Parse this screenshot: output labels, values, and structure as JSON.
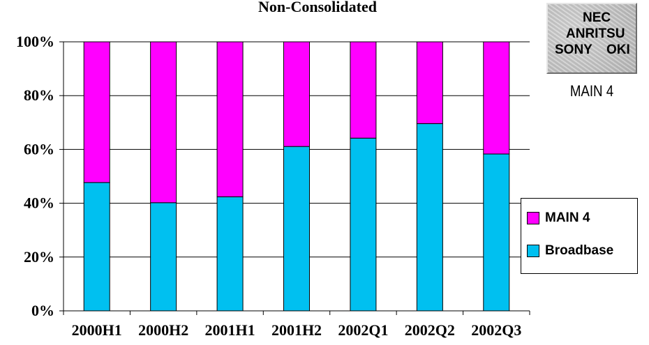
{
  "chart_data": {
    "type": "bar",
    "stacked": true,
    "title": "Non-Consolidated",
    "categories": [
      "2000H1",
      "2000H2",
      "2001H1",
      "2001H2",
      "2002Q1",
      "2002Q2",
      "2002Q3"
    ],
    "series": [
      {
        "name": "Broadbase",
        "color": "#00c0f0",
        "values": [
          47.7,
          40.2,
          42.4,
          61.1,
          64.2,
          69.6,
          58.3
        ]
      },
      {
        "name": "MAIN 4",
        "color": "#ff00ff",
        "values": [
          52.3,
          59.8,
          57.6,
          38.9,
          35.8,
          30.4,
          41.7
        ]
      }
    ],
    "ylim": [
      0,
      100
    ],
    "yticks": [
      "0%",
      "20%",
      "40%",
      "60%",
      "80%",
      "100%"
    ],
    "grid": true,
    "legend_position": "right"
  },
  "legend": [
    {
      "label": "MAIN 4",
      "color": "#ff00ff"
    },
    {
      "label": "Broadbase",
      "color": "#00c0f0"
    }
  ],
  "badge": {
    "line1": "NEC",
    "line2": "ANRITSU",
    "line3_left": "SONY",
    "line3_right": "OKI",
    "caption": "MAIN 4"
  }
}
